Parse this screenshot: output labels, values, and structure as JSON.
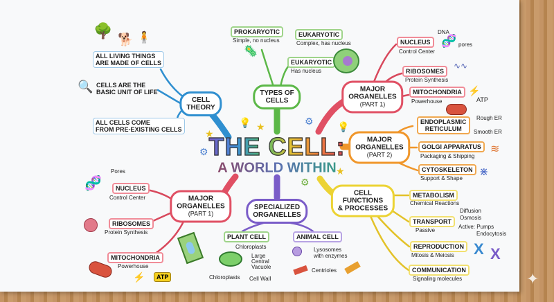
{
  "title": "THE CELL:",
  "subtitle": "A WORLD WITHIN",
  "colors": {
    "cell_theory": "#2f8fd0",
    "types": "#5cb848",
    "organelles1": "#e05064",
    "organelles2": "#f0962a",
    "functions": "#ecd334",
    "specialized": "#7a5cc8"
  },
  "cell_theory": {
    "label": [
      "CELL",
      "THEORY"
    ],
    "items": [
      "ALL LIVING THINGS",
      "ARE MADE OF CELLS",
      "CELLS ARE THE",
      "BASIC UNIT OF LIFE",
      "ALL CELLS COME",
      "FROM PRE-EXISTING CELLS"
    ]
  },
  "types": {
    "label": [
      "TYPES OF",
      "CELLS"
    ],
    "prokaryotic": "PROKARYOTIC",
    "prokaryotic_desc": "Simple, no nucleus",
    "eukaryotic1": "EUKARYOTIC",
    "eukaryotic1_desc": "Complex, has nucleus",
    "eukaryotic2": "EUKARYOTIC",
    "eukaryotic2_desc": "Has nucleus"
  },
  "organelles1_right": {
    "label": [
      "MAJOR",
      "ORGANELLES",
      "(PART 1)"
    ],
    "nucleus": "NUCLEUS",
    "nucleus_desc": "Control Center",
    "dna": "DNA",
    "pores": "pores",
    "ribosomes": "RIBOSOMES",
    "ribosomes_desc": "Protein Synthesis",
    "mito": "MITOCHONDRIA",
    "mito_desc": "Powerhouse",
    "atp": "ATP"
  },
  "organelles2": {
    "label": [
      "MAJOR",
      "ORGANELLES",
      "(PART 2)"
    ],
    "er": [
      "ENDOPLASMIC",
      "RETICULUM"
    ],
    "rough": "Rough ER",
    "smooth": "Smooth ER",
    "golgi": "GOLGI APPARATUS",
    "golgi_desc": "Packaging & Shipping",
    "cyto": "CYTOSKELETON",
    "cyto_desc": "Support & Shape"
  },
  "functions": {
    "label": [
      "CELL",
      "FUNCTIONS",
      "& PROCESSES"
    ],
    "metabolism": "METABOLISM",
    "metabolism_desc": "Chemical Reactions",
    "transport": "TRANSPORT",
    "transport_desc": "Passive",
    "diffusion": "Diffusion",
    "osmosis": "Osmosis",
    "active": "Active: Pumps",
    "endocytosis": "Endocytosis",
    "reproduction": "REPRODUCTION",
    "reproduction_desc": "Mitosis & Meiosis",
    "communication": "COMMUNICATION",
    "communication_desc": "Signaling molecules"
  },
  "organelles1_left": {
    "label": [
      "MAJOR",
      "ORGANELLES",
      "(PART 1)"
    ],
    "pores": "Pores",
    "nucleus": "NUCLEUS",
    "nucleus_desc": "Control Center",
    "ribosomes": "RIBOSOMES",
    "ribosomes_desc": "Protein Synthesis",
    "mito": "MITOCHONDRIA",
    "mito_desc": "Powerhouse",
    "atp": "ATP"
  },
  "specialized": {
    "label": [
      "SPECIALIZED",
      "ORGANELLES"
    ],
    "plant": "PLANT CELL",
    "chloroplasts": "Chloroplasts",
    "vacuole": [
      "Large",
      "Central",
      "Vacuole"
    ],
    "chloroplasts2": "Chloroplasts",
    "cell_wall": "Cell Wall",
    "animal": "ANIMAL CELL",
    "lysosomes": [
      "Lysosomes",
      "with enzymes"
    ],
    "centrioles": "Centrioles"
  }
}
